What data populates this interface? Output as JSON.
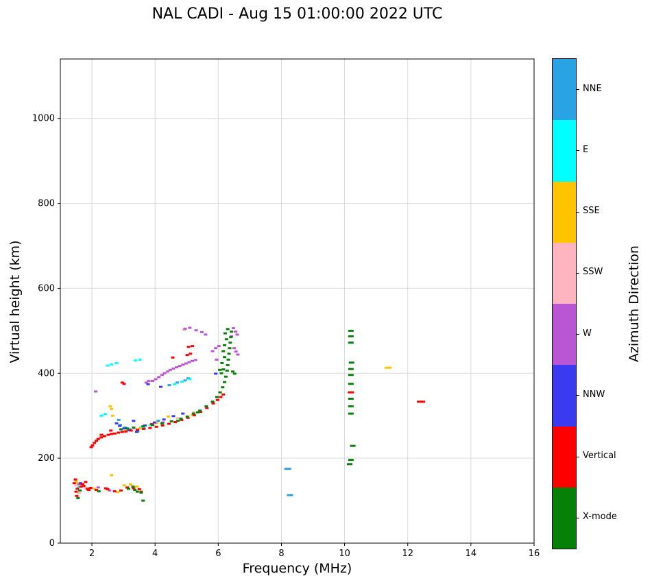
{
  "title": "NAL CADI - Aug 15 01:00:00 2022 UTC",
  "axes": {
    "x_label": "Frequency (MHz)",
    "y_label": "Virtual height (km)",
    "colorbar_label": "Azimuth Direction"
  },
  "legend": {
    "label": "Azimuth Direction",
    "entries": [
      {
        "label": "NNE",
        "color": "#29A3E3"
      },
      {
        "label": "E",
        "color": "#00FFFF"
      },
      {
        "label": "SSE",
        "color": "#FFC400"
      },
      {
        "label": "SSW",
        "color": "#FFB5C0"
      },
      {
        "label": "W",
        "color": "#BA55D3"
      },
      {
        "label": "NNW",
        "color": "#3A3AF0"
      },
      {
        "label": "Vertical",
        "color": "#FF0000"
      },
      {
        "label": "X-mode",
        "color": "#068006"
      }
    ]
  },
  "chart_data": {
    "type": "scatter",
    "title": "NAL CADI - Aug 15 01:00:00 2022 UTC",
    "xlabel": "Frequency (MHz)",
    "ylabel": "Virtual height (km)",
    "legend_title": "Azimuth Direction",
    "legend_position": "right-colorbar",
    "grid": true,
    "xlim": [
      1,
      16
    ],
    "ylim": [
      0,
      1140
    ],
    "x_ticks": [
      2,
      4,
      6,
      8,
      10,
      12,
      14,
      16
    ],
    "y_ticks": [
      0,
      200,
      400,
      600,
      800,
      1000
    ],
    "marker": {
      "width": 5,
      "height": 3
    },
    "series": [
      {
        "name": "NNE",
        "color": "#29A3E3",
        "points": [
          [
            8.2,
            175,
            10
          ],
          [
            8.27,
            113,
            9
          ],
          [
            2.9,
            278
          ],
          [
            3.05,
            272
          ],
          [
            3.2,
            268
          ],
          [
            3.45,
            263
          ],
          [
            3.65,
            270
          ],
          [
            2.85,
            290
          ],
          [
            4.1,
            288
          ],
          [
            4.45,
            372
          ],
          [
            4.7,
            378
          ],
          [
            4.95,
            383
          ],
          [
            5.05,
            388
          ]
        ]
      },
      {
        "name": "E",
        "color": "#00FFFF",
        "points": [
          [
            2.5,
            418
          ],
          [
            2.62,
            421
          ],
          [
            2.78,
            424
          ],
          [
            3.38,
            430
          ],
          [
            3.52,
            432
          ],
          [
            2.3,
            300
          ],
          [
            2.42,
            304
          ],
          [
            2.95,
            262
          ],
          [
            3.15,
            266
          ],
          [
            3.55,
            272
          ],
          [
            3.85,
            278
          ],
          [
            4.62,
            374
          ],
          [
            4.85,
            380
          ],
          [
            5.1,
            386
          ],
          [
            1.58,
            132
          ]
        ]
      },
      {
        "name": "SSE",
        "color": "#FFC400",
        "points": [
          [
            1.48,
            148
          ],
          [
            1.52,
            143
          ],
          [
            1.56,
            138
          ],
          [
            2.08,
            128
          ],
          [
            2.62,
            160
          ],
          [
            2.82,
            120
          ],
          [
            3.02,
            136
          ],
          [
            3.12,
            130
          ],
          [
            3.22,
            138
          ],
          [
            3.42,
            133
          ],
          [
            2.58,
            322
          ],
          [
            2.62,
            316
          ],
          [
            2.66,
            300
          ],
          [
            3.06,
            264
          ],
          [
            3.52,
            270
          ],
          [
            4.05,
            283
          ],
          [
            4.42,
            298
          ],
          [
            5.18,
            302
          ],
          [
            11.38,
            413,
            10
          ]
        ]
      },
      {
        "name": "SSW",
        "color": "#FFB5C0",
        "points": [
          [
            1.5,
            136
          ],
          [
            1.6,
            118
          ],
          [
            1.78,
            131
          ],
          [
            1.84,
            127
          ],
          [
            2.24,
            248
          ],
          [
            3.04,
            261
          ],
          [
            3.36,
            270
          ],
          [
            4.72,
            294
          ],
          [
            5.22,
            308
          ],
          [
            4.92,
            502
          ]
        ]
      },
      {
        "name": "W",
        "color": "#BA55D3",
        "points": [
          [
            1.6,
            139
          ],
          [
            2.2,
            131
          ],
          [
            2.56,
            124
          ],
          [
            2.12,
            357
          ],
          [
            3.72,
            378
          ],
          [
            3.8,
            382
          ],
          [
            3.92,
            382
          ],
          [
            4.02,
            386
          ],
          [
            4.12,
            391
          ],
          [
            4.22,
            396
          ],
          [
            4.3,
            400
          ],
          [
            4.4,
            404
          ],
          [
            4.48,
            408
          ],
          [
            4.58,
            411
          ],
          [
            4.68,
            414
          ],
          [
            4.78,
            417
          ],
          [
            4.88,
            420
          ],
          [
            4.98,
            423
          ],
          [
            5.08,
            426
          ],
          [
            5.18,
            429
          ],
          [
            5.28,
            431
          ],
          [
            4.25,
            284
          ],
          [
            5.95,
            432
          ],
          [
            4.95,
            505
          ],
          [
            5.1,
            507
          ],
          [
            5.3,
            501
          ],
          [
            5.48,
            497
          ],
          [
            5.6,
            491
          ],
          [
            6.42,
            487
          ],
          [
            6.48,
            506
          ],
          [
            6.55,
            498
          ],
          [
            6.6,
            491
          ],
          [
            5.82,
            452
          ],
          [
            5.92,
            459
          ],
          [
            6.02,
            464
          ],
          [
            6.5,
            459
          ],
          [
            6.56,
            451
          ],
          [
            6.62,
            444
          ]
        ]
      },
      {
        "name": "NNW",
        "color": "#3A3AF0",
        "points": [
          [
            1.64,
            141
          ],
          [
            2.78,
            282
          ],
          [
            2.88,
            276
          ],
          [
            3.02,
            270
          ],
          [
            3.18,
            266
          ],
          [
            3.42,
            262
          ],
          [
            3.68,
            277
          ],
          [
            3.98,
            284
          ],
          [
            4.28,
            291
          ],
          [
            4.58,
            299
          ],
          [
            3.32,
            288
          ],
          [
            4.88,
            305
          ],
          [
            3.78,
            374
          ],
          [
            4.18,
            368
          ],
          [
            5.92,
            399
          ]
        ]
      },
      {
        "name": "Vertical",
        "color": "#FF0000",
        "points": [
          [
            1.44,
            141
          ],
          [
            1.48,
            150
          ],
          [
            1.5,
            121
          ],
          [
            1.52,
            111
          ],
          [
            1.54,
            128
          ],
          [
            1.66,
            133
          ],
          [
            1.7,
            139
          ],
          [
            1.74,
            135
          ],
          [
            1.8,
            144
          ],
          [
            1.86,
            128
          ],
          [
            1.9,
            125
          ],
          [
            1.96,
            130
          ],
          [
            2.14,
            125
          ],
          [
            2.44,
            129
          ],
          [
            2.5,
            127
          ],
          [
            2.72,
            122
          ],
          [
            2.92,
            124
          ],
          [
            3.12,
            131
          ],
          [
            3.32,
            129
          ],
          [
            3.5,
            127
          ],
          [
            3.56,
            121
          ],
          [
            1.98,
            226
          ],
          [
            2.02,
            230
          ],
          [
            2.08,
            236
          ],
          [
            2.14,
            241
          ],
          [
            2.2,
            245
          ],
          [
            2.3,
            249
          ],
          [
            2.4,
            252
          ],
          [
            2.52,
            255
          ],
          [
            2.62,
            257
          ],
          [
            2.72,
            258
          ],
          [
            2.84,
            260
          ],
          [
            2.96,
            262
          ],
          [
            3.08,
            263
          ],
          [
            3.24,
            265
          ],
          [
            3.44,
            267
          ],
          [
            3.64,
            269
          ],
          [
            3.84,
            271
          ],
          [
            4.04,
            274
          ],
          [
            4.24,
            277
          ],
          [
            4.44,
            281
          ],
          [
            4.64,
            285
          ],
          [
            4.84,
            290
          ],
          [
            5.04,
            295
          ],
          [
            5.24,
            301
          ],
          [
            5.44,
            309
          ],
          [
            5.64,
            318
          ],
          [
            5.84,
            329
          ],
          [
            5.98,
            337
          ],
          [
            6.08,
            344
          ],
          [
            6.16,
            350
          ],
          [
            2.3,
            255
          ],
          [
            2.6,
            265
          ],
          [
            2.96,
            378
          ],
          [
            3.02,
            375
          ],
          [
            3.9,
            280
          ],
          [
            4.56,
            437
          ],
          [
            5.02,
            443
          ],
          [
            5.12,
            446
          ],
          [
            5.06,
            462
          ],
          [
            5.18,
            464
          ],
          [
            10.2,
            355,
            9
          ],
          [
            12.42,
            333,
            12
          ]
        ]
      },
      {
        "name": "X-mode",
        "color": "#068006",
        "points": [
          [
            1.56,
            106
          ],
          [
            1.62,
            124
          ],
          [
            2.22,
            122
          ],
          [
            3.16,
            128
          ],
          [
            3.3,
            133
          ],
          [
            3.36,
            125
          ],
          [
            3.44,
            121
          ],
          [
            3.56,
            119
          ],
          [
            3.62,
            100
          ],
          [
            2.92,
            268
          ],
          [
            3.12,
            270
          ],
          [
            3.32,
            272
          ],
          [
            3.62,
            275
          ],
          [
            3.92,
            278
          ],
          [
            4.22,
            282
          ],
          [
            4.52,
            287
          ],
          [
            4.72,
            288
          ],
          [
            4.82,
            293
          ],
          [
            5.02,
            298
          ],
          [
            5.22,
            305
          ],
          [
            5.35,
            308
          ],
          [
            5.42,
            312
          ],
          [
            5.62,
            322
          ],
          [
            5.82,
            333
          ],
          [
            5.96,
            344
          ],
          [
            6.06,
            355
          ],
          [
            6.14,
            367
          ],
          [
            6.2,
            379
          ],
          [
            6.24,
            392
          ],
          [
            6.28,
            406
          ],
          [
            6.3,
            419
          ],
          [
            6.32,
            432
          ],
          [
            6.34,
            446
          ],
          [
            6.36,
            459
          ],
          [
            6.38,
            472
          ],
          [
            6.4,
            485
          ],
          [
            6.42,
            498
          ],
          [
            6.3,
            504
          ],
          [
            6.22,
            494
          ],
          [
            6.26,
            480
          ],
          [
            6.2,
            466
          ],
          [
            6.16,
            452
          ],
          [
            6.2,
            438
          ],
          [
            6.12,
            424
          ],
          [
            6.16,
            409
          ],
          [
            6.05,
            408
          ],
          [
            6.1,
            400
          ],
          [
            6.46,
            404
          ],
          [
            6.52,
            399
          ],
          [
            10.2,
            500,
            8
          ],
          [
            10.2,
            487,
            8
          ],
          [
            10.2,
            472,
            8
          ],
          [
            10.22,
            425,
            8
          ],
          [
            10.2,
            410,
            8
          ],
          [
            10.2,
            396,
            8
          ],
          [
            10.2,
            375,
            8
          ],
          [
            10.2,
            340,
            8
          ],
          [
            10.2,
            322,
            8
          ],
          [
            10.2,
            305,
            8
          ],
          [
            10.26,
            229,
            8
          ],
          [
            10.2,
            196,
            8
          ],
          [
            10.16,
            186,
            8
          ]
        ]
      }
    ]
  }
}
